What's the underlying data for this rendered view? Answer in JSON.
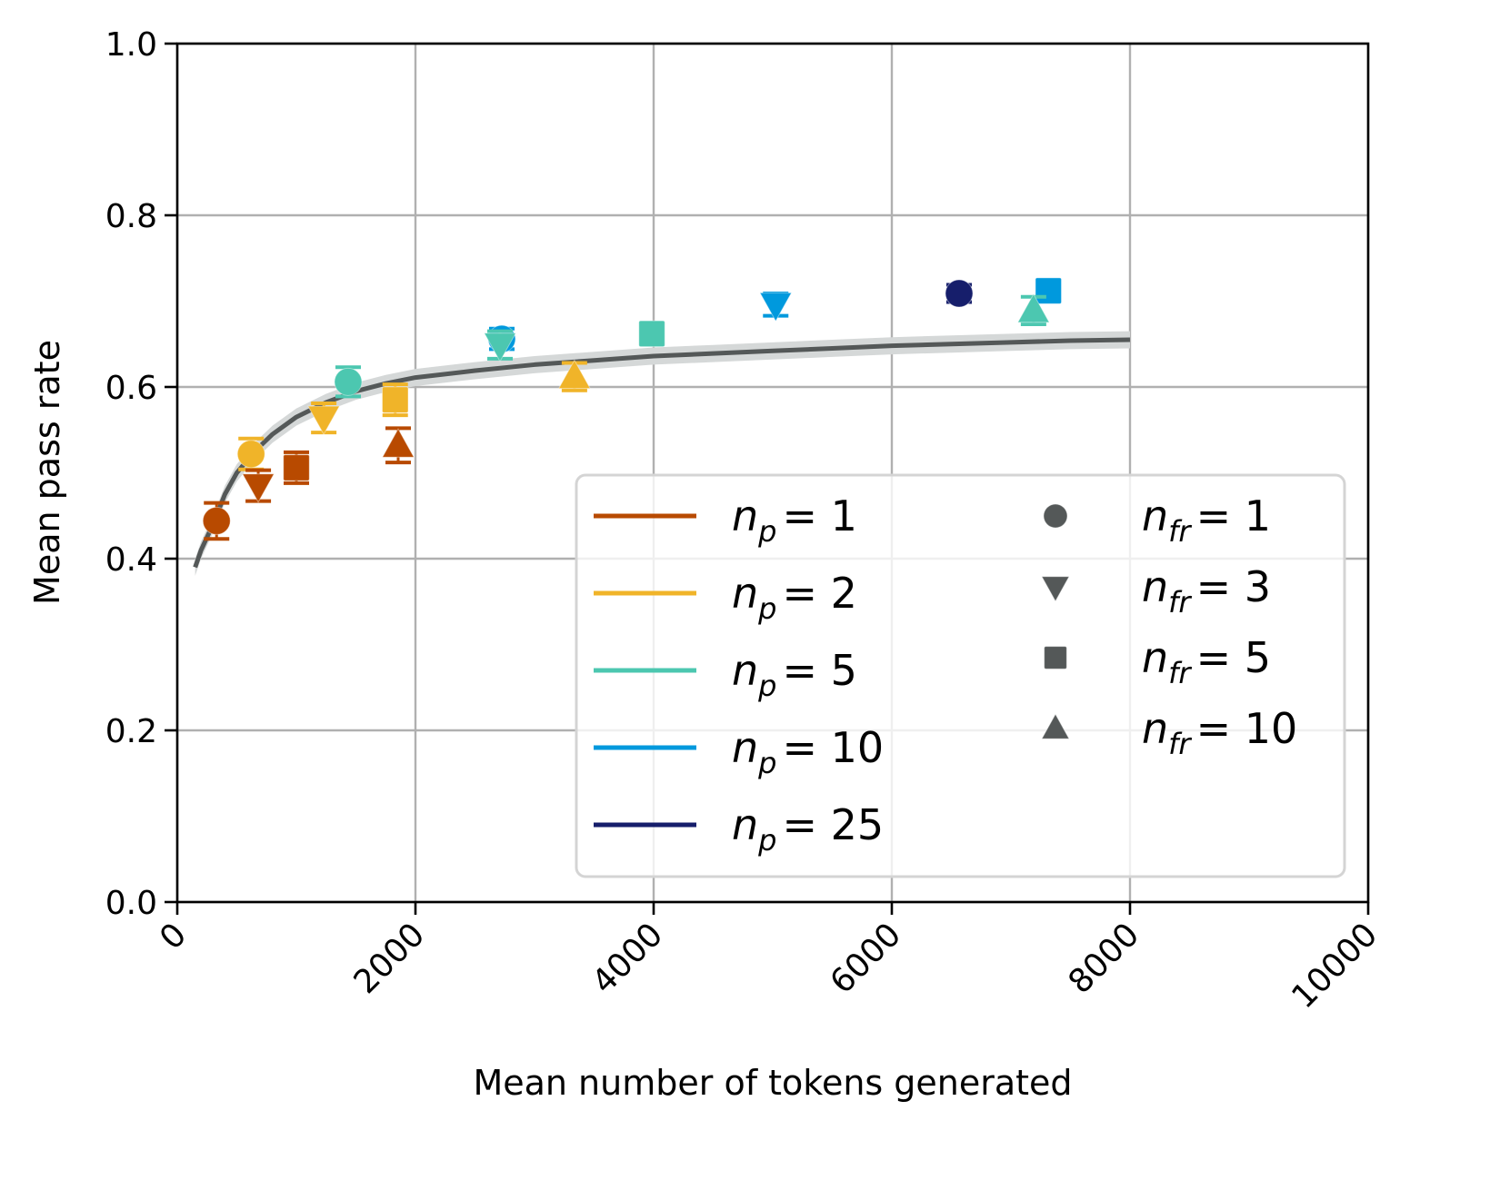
{
  "chart_data": {
    "type": "scatter",
    "title": "",
    "xlabel": "Mean number of tokens generated",
    "ylabel": "Mean pass rate",
    "xlim": [
      0,
      10000
    ],
    "ylim": [
      0,
      1.0
    ],
    "xticks": [
      0,
      2000,
      4000,
      6000,
      8000,
      10000
    ],
    "xtick_labels": [
      "0",
      "2000",
      "4000",
      "6000",
      "8000",
      "10000"
    ],
    "yticks": [
      0.0,
      0.2,
      0.4,
      0.6,
      0.8,
      1.0
    ],
    "ytick_labels": [
      "0.0",
      "0.2",
      "0.4",
      "0.6",
      "0.8",
      "1.0"
    ],
    "xtick_rotation_deg": 45,
    "grid": true,
    "legend_placement": "lower-right",
    "color_legend": [
      {
        "label_base": "n",
        "label_sub": "p",
        "label_value": "= 1",
        "np": 1,
        "color": "#b84a00"
      },
      {
        "label_base": "n",
        "label_sub": "p",
        "label_value": "= 2",
        "np": 2,
        "color": "#f0b429"
      },
      {
        "label_base": "n",
        "label_sub": "p",
        "label_value": "= 5",
        "np": 5,
        "color": "#4cc7b0"
      },
      {
        "label_base": "n",
        "label_sub": "p",
        "label_value": "= 10",
        "np": 10,
        "color": "#0099dd"
      },
      {
        "label_base": "n",
        "label_sub": "p",
        "label_value": "= 25",
        "np": 25,
        "color": "#161e6b"
      }
    ],
    "marker_legend": [
      {
        "label_base": "n",
        "label_sub": "fr",
        "label_value": "= 1",
        "nfr": 1,
        "marker": "circle"
      },
      {
        "label_base": "n",
        "label_sub": "fr",
        "label_value": "= 3",
        "nfr": 3,
        "marker": "triangle-down"
      },
      {
        "label_base": "n",
        "label_sub": "fr",
        "label_value": "= 5",
        "nfr": 5,
        "marker": "square"
      },
      {
        "label_base": "n",
        "label_sub": "fr",
        "label_value": "= 10",
        "nfr": 10,
        "marker": "triangle-up"
      }
    ],
    "marker_legend_color": "#545858",
    "points": [
      {
        "np": 1,
        "nfr": 1,
        "x": 330,
        "y": 0.444,
        "yerr": 0.021
      },
      {
        "np": 2,
        "nfr": 1,
        "x": 620,
        "y": 0.522,
        "yerr": 0.018
      },
      {
        "np": 1,
        "nfr": 3,
        "x": 680,
        "y": 0.485,
        "yerr": 0.018
      },
      {
        "np": 1,
        "nfr": 5,
        "x": 1000,
        "y": 0.506,
        "yerr": 0.018
      },
      {
        "np": 2,
        "nfr": 3,
        "x": 1230,
        "y": 0.564,
        "yerr": 0.017
      },
      {
        "np": 5,
        "nfr": 1,
        "x": 1435,
        "y": 0.606,
        "yerr": 0.017
      },
      {
        "np": 2,
        "nfr": 5,
        "x": 1830,
        "y": 0.585,
        "yerr": 0.018
      },
      {
        "np": 1,
        "nfr": 10,
        "x": 1855,
        "y": 0.532,
        "yerr": 0.02
      },
      {
        "np": 10,
        "nfr": 1,
        "x": 2725,
        "y": 0.656,
        "yerr": 0.012
      },
      {
        "np": 5,
        "nfr": 3,
        "x": 2710,
        "y": 0.649,
        "yerr": 0.016
      },
      {
        "np": 2,
        "nfr": 10,
        "x": 3335,
        "y": 0.612,
        "yerr": 0.016
      },
      {
        "np": 5,
        "nfr": 5,
        "x": 3985,
        "y": 0.662,
        "yerr": 0.012
      },
      {
        "np": 10,
        "nfr": 3,
        "x": 5025,
        "y": 0.696,
        "yerr": 0.013
      },
      {
        "np": 25,
        "nfr": 1,
        "x": 6565,
        "y": 0.709,
        "yerr": 0.01
      },
      {
        "np": 10,
        "nfr": 5,
        "x": 7315,
        "y": 0.712,
        "yerr": 0.01
      },
      {
        "np": 5,
        "nfr": 10,
        "x": 7190,
        "y": 0.689,
        "yerr": 0.016
      }
    ],
    "fit_curve": {
      "color": "#545858",
      "band_color": "#d5d8d8",
      "band_halfwidth": 0.01,
      "x": [
        150,
        200,
        300,
        400,
        500,
        650,
        800,
        1000,
        1250,
        1500,
        1750,
        2000,
        2500,
        3000,
        3500,
        4000,
        4500,
        5000,
        5500,
        6000,
        6500,
        7000,
        7500,
        8000
      ],
      "y": [
        0.39,
        0.41,
        0.44,
        0.475,
        0.5,
        0.525,
        0.545,
        0.565,
        0.582,
        0.595,
        0.604,
        0.611,
        0.619,
        0.626,
        0.631,
        0.636,
        0.639,
        0.642,
        0.645,
        0.648,
        0.65,
        0.652,
        0.654,
        0.655
      ]
    }
  }
}
